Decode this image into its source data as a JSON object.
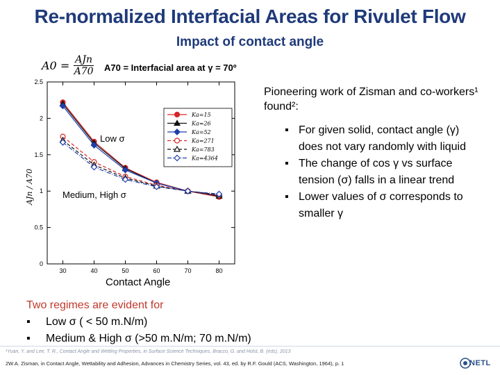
{
  "title": "Re-normalized Interfacial Areas for Rivulet Flow",
  "subtitle": "Impact of contact angle",
  "formula": {
    "lhs": "A0 =",
    "numerator": "AJn",
    "denominator": "A70"
  },
  "a70_definition": "A70 = Interfacial area at γ = 70º",
  "chart_data": {
    "type": "line",
    "xlabel": "Contact Angle",
    "ylabel": "AJn / A70",
    "xlim": [
      25,
      85
    ],
    "ylim": [
      0,
      2.5
    ],
    "x_ticks": [
      30,
      40,
      50,
      60,
      70,
      80
    ],
    "y_ticks": [
      0,
      0.5,
      1,
      1.5,
      2,
      2.5
    ],
    "x": [
      30,
      40,
      50,
      60,
      70,
      80
    ],
    "legend_position": "top-right",
    "series": [
      {
        "name": "Ka=15",
        "values": [
          2.22,
          1.68,
          1.32,
          1.12,
          1.0,
          0.92
        ],
        "color": "#d62728",
        "dash": "solid",
        "marker": "circle-filled"
      },
      {
        "name": "Ka=26",
        "values": [
          2.2,
          1.66,
          1.31,
          1.11,
          1.0,
          0.93
        ],
        "color": "#111111",
        "dash": "solid",
        "marker": "triangle-filled"
      },
      {
        "name": "Ka=52",
        "values": [
          2.17,
          1.63,
          1.29,
          1.11,
          1.0,
          0.94
        ],
        "color": "#1f3faa",
        "dash": "solid",
        "marker": "diamond-filled"
      },
      {
        "name": "Ka=271",
        "values": [
          1.75,
          1.4,
          1.2,
          1.08,
          1.0,
          0.94
        ],
        "color": "#d62728",
        "dash": "dash",
        "marker": "circle-open"
      },
      {
        "name": "Ka=783",
        "values": [
          1.7,
          1.36,
          1.18,
          1.07,
          1.0,
          0.95
        ],
        "color": "#111111",
        "dash": "dash",
        "marker": "triangle-open"
      },
      {
        "name": "Ka=4364",
        "values": [
          1.67,
          1.33,
          1.16,
          1.06,
          1.0,
          0.96
        ],
        "color": "#1f3faa",
        "dash": "dashdot",
        "marker": "diamond-open"
      }
    ],
    "annotations": [
      "Low σ",
      "Medium, High σ"
    ]
  },
  "right_heading": "Pioneering work of Zisman and co-workers¹ found²:",
  "bullets": [
    "For given solid, contact angle (γ) does not vary randomly with liquid",
    "The change of cos γ vs surface tension (σ) falls in a linear trend",
    "Lower values of σ corresponds to smaller γ"
  ],
  "regimes": {
    "heading": "Two regimes are evident for",
    "items": [
      "Low σ ( < 50 m.N/m)",
      "Medium & High σ  (>50 m.N/m; 70 m.N/m)"
    ]
  },
  "references": {
    "ref1": "¹Yuan, Y. and Lee, T. R., Contact Angle and Wetting Properties, in Surface Science Techniques, Bracco, G. and Holst, B. (eds), 2013",
    "ref2": "2W.A. Zisman, in Contact Angle, Wettability and Adhesion, Advances in Chemistry Series, vol. 43, ed. by R.F. Gould (ACS, Washington, 1964), p. 1"
  },
  "logo_text": "NETL"
}
